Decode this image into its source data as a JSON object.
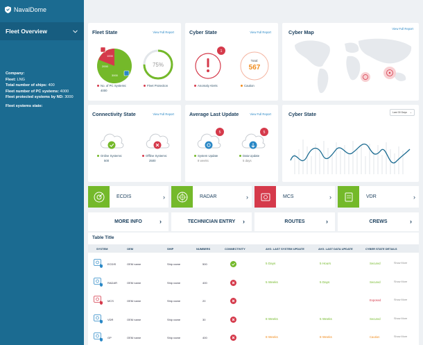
{
  "brand": {
    "name": "NavalDome"
  },
  "sidebar": {
    "section_title": "Fleet Overview",
    "company_label": "Company:",
    "fleet_label": "Fleet:",
    "fleet_value": "LNG",
    "ships_label": "Total number of ships:",
    "ships_value": "400",
    "pc_label": "Fleet number of PC systems:",
    "pc_value": "4000",
    "protected_label": "Fleet protected systems by ND:",
    "protected_value": "3000",
    "state_label": "Fleet systems state:"
  },
  "fleet_state": {
    "title": "Fleet State",
    "link": "View Full Report",
    "pie_a": "1000",
    "pie_b": "3000",
    "pie_c": "2000",
    "gauge_percent": 75,
    "gauge_label": "75%",
    "legend1": "No. of PC Systems:",
    "legend1_value": "4000",
    "legend2": "Fleet Protection"
  },
  "cyber_state": {
    "title": "Cyber State",
    "link": "View Full Report",
    "badge": "1",
    "total_label": "Total:",
    "total_value": "567",
    "legend1": "Anomaly Alerts",
    "legend2": "Caution"
  },
  "cyber_map": {
    "title": "Cyber Map",
    "link": "View Full Report"
  },
  "connectivity": {
    "title": "Connectivity State",
    "link": "View Full Report",
    "online_label": "Online Systems:",
    "online_value": "500",
    "offline_label": "Offline Systems:",
    "offline_value": "2500"
  },
  "avg_update": {
    "title": "Average Last Update",
    "link": "View Full Report",
    "badge1": "5",
    "badge2": "5",
    "sys_label": "System Update",
    "sys_value": "8 weeks",
    "data_label": "Data Update",
    "data_value": "5 days"
  },
  "cyber_state_chart": {
    "title": "Cyber State",
    "select": "Last 30 Days"
  },
  "systems": [
    {
      "label": "ECDIS"
    },
    {
      "label": "RADAR"
    },
    {
      "label": "MCS"
    },
    {
      "label": "VDR"
    }
  ],
  "info_tabs": [
    {
      "label": "MORE INFO"
    },
    {
      "label": "TECHNICIAN ENTRY"
    },
    {
      "label": "ROUTES"
    },
    {
      "label": "CREWS"
    }
  ],
  "table": {
    "title": "Table Title",
    "headers": [
      "SYSTEM",
      "OEM",
      "SHIP",
      "NUMBERS",
      "CONNECTIVITY",
      "AVG. LAST SYSTEM UPDATE",
      "AVG. LAST DATA UPDATE",
      "CYBER STATE DETAILS"
    ],
    "rows": [
      {
        "system": "ECDIS",
        "oem": "OEM name",
        "ship": "Ship name",
        "number": "500",
        "conn": "ok",
        "sys_update": "5 Days",
        "sys_color": "green",
        "data_update": "5 Hours",
        "data_color": "green",
        "state": "Secured",
        "state_color": "green",
        "more": "Show More"
      },
      {
        "system": "RADAR",
        "oem": "OEM name",
        "ship": "Ship name",
        "number": "400",
        "conn": "fail",
        "sys_update": "5 Weeks",
        "sys_color": "green",
        "data_update": "5 Days",
        "data_color": "green",
        "state": "Secured",
        "state_color": "green",
        "more": "Show More"
      },
      {
        "system": "MCS",
        "oem": "OEM name",
        "ship": "Ship name",
        "number": "20",
        "conn": "fail",
        "sys_update": "",
        "sys_color": "green",
        "data_update": "",
        "data_color": "green",
        "state": "Exposed",
        "state_color": "red",
        "more": "Show More"
      },
      {
        "system": "VDR",
        "oem": "OEM name",
        "ship": "Ship name",
        "number": "30",
        "conn": "fail",
        "sys_update": "8 Weeks",
        "sys_color": "green",
        "data_update": "5 Weeks",
        "data_color": "green",
        "state": "Secured",
        "state_color": "green",
        "more": "Show More"
      },
      {
        "system": "GP",
        "oem": "OEM name",
        "ship": "Ship name",
        "number": "400",
        "conn": "fail",
        "sys_update": "8 Weeks",
        "sys_color": "orange",
        "data_update": "8 Weeks",
        "data_color": "orange",
        "state": "Caution",
        "state_color": "orange",
        "more": "Show More"
      }
    ]
  },
  "colors": {
    "sidebar": "#1b6b91",
    "green": "#74b92a",
    "red": "#d53a4b",
    "orange": "#f08b1b",
    "blue": "#2a88c6"
  }
}
